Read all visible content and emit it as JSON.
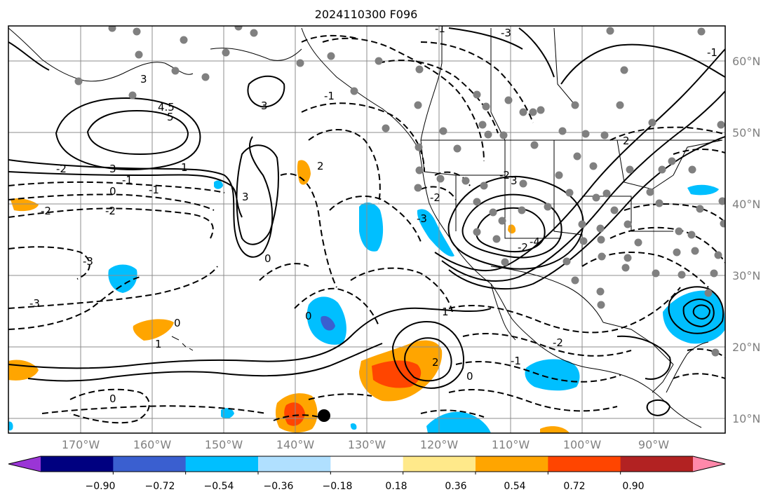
{
  "title": "2024110300 F096",
  "map": {
    "longitude_ticks": [
      "170°W",
      "160°W",
      "150°W",
      "140°W",
      "130°W",
      "120°W",
      "110°W",
      "100°W",
      "90°W"
    ],
    "latitude_ticks": [
      "60°N",
      "50°N",
      "40°N",
      "30°N",
      "20°N",
      "10°N"
    ],
    "contour_labels": [
      "3",
      "5",
      "4.5",
      "3",
      "-1",
      "0",
      "-2",
      "-2",
      "3",
      "0",
      "-1",
      "1",
      "0",
      "1",
      "-2",
      "-3",
      "-3",
      "-1",
      "2",
      "3",
      "0",
      "-2",
      "-3",
      "1",
      "2",
      "-2",
      "3",
      "2",
      "-4",
      "-2",
      "-1",
      "-2",
      "0",
      "-1",
      "-3",
      "-1",
      "0"
    ],
    "stations_marker_color": "#808080",
    "highlight_marker_color": "#000000"
  },
  "colorbar": {
    "tick_labels": [
      "−0.90",
      "−0.72",
      "−0.54",
      "−0.36",
      "−0.18",
      "0.18",
      "0.36",
      "0.54",
      "0.72",
      "0.90"
    ],
    "colors": [
      "#9a35d6",
      "#000080",
      "#3a5fd0",
      "#00bfff",
      "#b0e0ff",
      "#ffffff",
      "#ffe98a",
      "#ffa500",
      "#ff4500",
      "#b22222",
      "#ff88aa"
    ]
  }
}
